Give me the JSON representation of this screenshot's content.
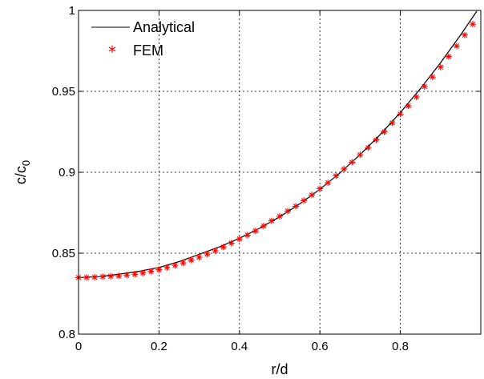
{
  "chart_data": {
    "type": "line",
    "xlabel": "r/d",
    "ylabel_base": "c/c",
    "ylabel_sub": "0",
    "xlim": [
      0,
      1
    ],
    "ylim": [
      0.8,
      1
    ],
    "x_ticks": [
      0,
      0.2,
      0.4,
      0.6,
      0.8
    ],
    "x_tick_labels": [
      "0",
      "0.2",
      "0.4",
      "0.6",
      "0.8"
    ],
    "y_ticks": [
      0.8,
      0.85,
      0.9,
      0.95,
      1
    ],
    "y_tick_labels": [
      "0.8",
      "0.85",
      "0.9",
      "0.95",
      "1"
    ],
    "grid": true,
    "legend_position": "top-left",
    "series": [
      {
        "name": "Analytical",
        "style": "line",
        "color": "#000000",
        "x": [
          0,
          0.05,
          0.1,
          0.15,
          0.2,
          0.25,
          0.3,
          0.35,
          0.4,
          0.45,
          0.5,
          0.55,
          0.6,
          0.65,
          0.7,
          0.75,
          0.8,
          0.85,
          0.9,
          0.95,
          0.99
        ],
        "y": [
          0.835,
          0.8355,
          0.837,
          0.8388,
          0.8412,
          0.8448,
          0.8493,
          0.8539,
          0.8592,
          0.8654,
          0.8725,
          0.8805,
          0.8895,
          0.8996,
          0.9109,
          0.9233,
          0.9369,
          0.9517,
          0.9677,
          0.9849,
          0.9995
        ]
      },
      {
        "name": "FEM",
        "style": "marker",
        "marker": "*",
        "color": "#ff0000",
        "x": [
          0,
          0.02,
          0.04,
          0.06,
          0.08,
          0.1,
          0.12,
          0.14,
          0.16,
          0.18,
          0.2,
          0.22,
          0.24,
          0.26,
          0.28,
          0.3,
          0.32,
          0.34,
          0.36,
          0.38,
          0.4,
          0.42,
          0.44,
          0.46,
          0.48,
          0.5,
          0.52,
          0.54,
          0.56,
          0.58,
          0.6,
          0.62,
          0.64,
          0.66,
          0.68,
          0.7,
          0.72,
          0.74,
          0.76,
          0.78,
          0.8,
          0.82,
          0.84,
          0.86,
          0.88,
          0.9,
          0.92,
          0.94,
          0.96,
          0.98
        ],
        "y": [
          0.835,
          0.835,
          0.8352,
          0.8355,
          0.8358,
          0.836,
          0.8365,
          0.837,
          0.8378,
          0.8388,
          0.8398,
          0.8412,
          0.8425,
          0.844,
          0.8458,
          0.8475,
          0.8495,
          0.8515,
          0.8538,
          0.8562,
          0.8588,
          0.8612,
          0.8638,
          0.8668,
          0.87,
          0.8728,
          0.876,
          0.879,
          0.8825,
          0.886,
          0.8898,
          0.8935,
          0.8978,
          0.902,
          0.9062,
          0.9108,
          0.9152,
          0.92,
          0.925,
          0.9305,
          0.936,
          0.941,
          0.9465,
          0.953,
          0.9588,
          0.965,
          0.9715,
          0.978,
          0.9848,
          0.9915
        ]
      }
    ]
  }
}
